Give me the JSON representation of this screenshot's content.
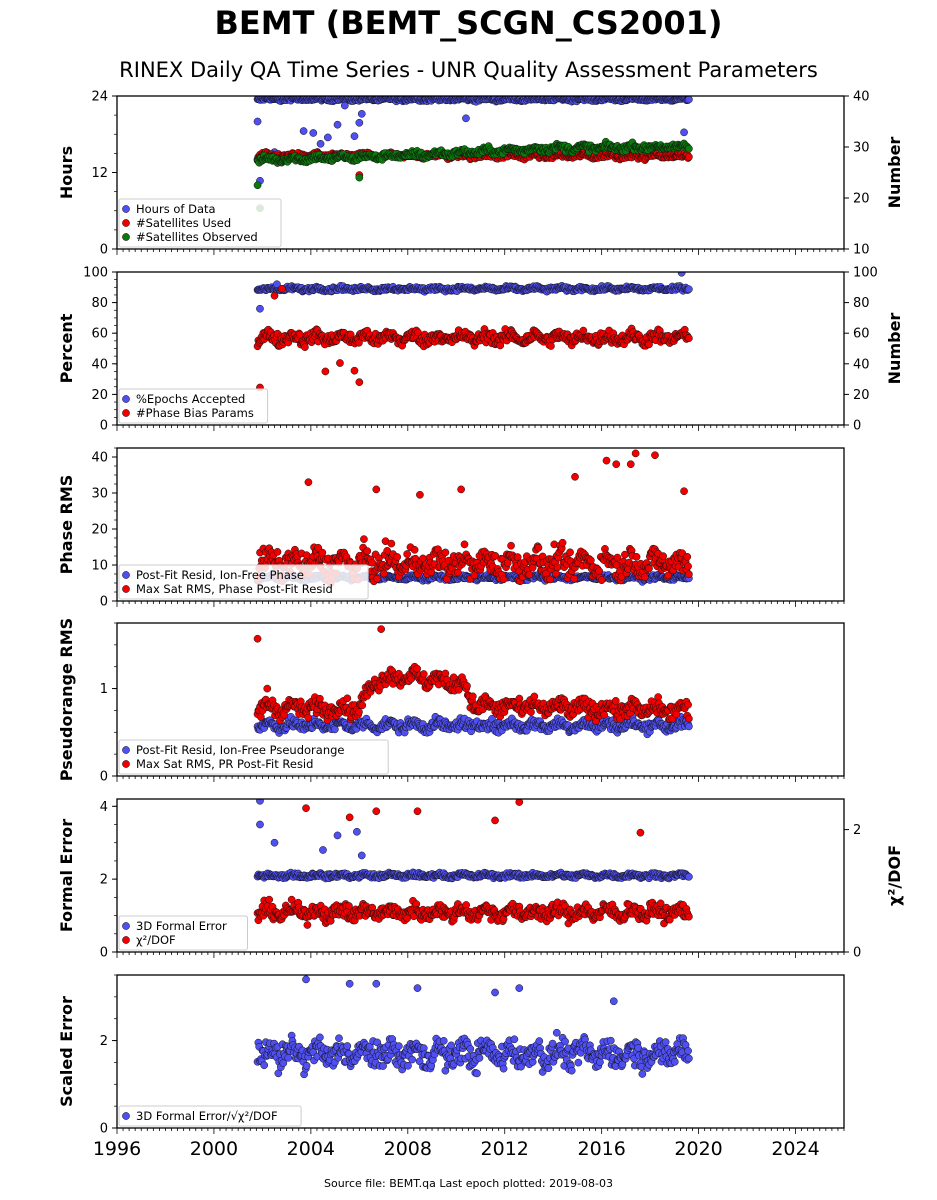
{
  "title": "BEMT (BEMT_SCGN_CS2001)",
  "subtitle": "RINEX Daily QA Time Series - UNR Quality Assessment Parameters",
  "source_note": "Source file: BEMT.qa Last epoch plotted: 2019-08-03",
  "colors": {
    "blue": "#4f4ff2",
    "red": "#f20000",
    "green": "#0a7a0a"
  },
  "chart_data": [
    {
      "type": "scatter",
      "ylabel": "Hours",
      "ylim": [
        0,
        24
      ],
      "yticks": [
        "0",
        "12",
        "24"
      ],
      "y2label": "Number",
      "y2lim": [
        10,
        40
      ],
      "y2ticks": [
        "10",
        "20",
        "30",
        "40"
      ],
      "xlim": [
        1996,
        2026
      ],
      "data_range": [
        2001.8,
        2019.6
      ],
      "series": [
        {
          "name": "Hours of Data",
          "color": "#4f4ff2",
          "axis": "left",
          "typical": 23.5,
          "spread": 0.25,
          "outliers": [
            [
              2001.8,
              20
            ],
            [
              2001.9,
              10.7
            ],
            [
              2002.5,
              15.2
            ],
            [
              2003.7,
              18.5
            ],
            [
              2004.1,
              18.2
            ],
            [
              2004.4,
              16.5
            ],
            [
              2004.7,
              17.5
            ],
            [
              2005.1,
              19.5
            ],
            [
              2005.4,
              22.5
            ],
            [
              2005.8,
              17.7
            ],
            [
              2006.0,
              19.8
            ],
            [
              2006.1,
              21.2
            ],
            [
              2010.4,
              20.5
            ],
            [
              2019.4,
              18.3
            ]
          ]
        },
        {
          "name": "#Satellites Used",
          "color": "#f20000",
          "axis": "right",
          "typical": 28.3,
          "spread": 0.5,
          "outliers": [
            [
              2006.0,
              24.5
            ]
          ]
        },
        {
          "name": "#Satellites Observed",
          "color": "#0a7a0a",
          "axis": "right",
          "typical": 28.2,
          "spread": 0.6,
          "trend": [
            [
              2001.8,
              27.5
            ],
            [
              2006.0,
              28.0
            ],
            [
              2010.0,
              28.8
            ],
            [
              2014.0,
              29.8
            ],
            [
              2019.6,
              30.0
            ]
          ],
          "outliers": [
            [
              2001.8,
              22.5
            ],
            [
              2001.9,
              18.0
            ],
            [
              2006.0,
              24.0
            ]
          ]
        }
      ]
    },
    {
      "type": "scatter",
      "ylabel": "Percent",
      "ylim": [
        0,
        100
      ],
      "yticks": [
        "0",
        "20",
        "40",
        "60",
        "80",
        "100"
      ],
      "y2label": "Number",
      "y2lim": [
        0,
        100
      ],
      "y2ticks": [
        "0",
        "20",
        "40",
        "60",
        "80",
        "100"
      ],
      "xlim": [
        1996,
        2026
      ],
      "data_range": [
        2001.8,
        2019.6
      ],
      "series": [
        {
          "name": "%Epochs Accepted",
          "color": "#4f4ff2",
          "axis": "left",
          "typical": 89,
          "spread": 1.3,
          "outliers": [
            [
              2001.9,
              76
            ],
            [
              2002.6,
              92
            ],
            [
              2019.3,
              99.5
            ]
          ]
        },
        {
          "name": "#Phase Bias Params",
          "color": "#f20000",
          "axis": "right",
          "typical": 57,
          "spread": 4,
          "outliers": [
            [
              2001.9,
              24.5
            ],
            [
              2002.5,
              84.5
            ],
            [
              2002.8,
              89
            ],
            [
              2004.6,
              35
            ],
            [
              2005.2,
              40.5
            ],
            [
              2005.8,
              35.5
            ],
            [
              2006.0,
              28
            ]
          ]
        }
      ]
    },
    {
      "type": "scatter",
      "ylabel": "Phase RMS",
      "ylim": [
        0,
        42.5
      ],
      "yticks": [
        "0",
        "10",
        "20",
        "30",
        "40"
      ],
      "xlim": [
        1996,
        2026
      ],
      "data_range": [
        2001.8,
        2019.6
      ],
      "series": [
        {
          "name": "Post-Fit Resid, Ion-Free Phase",
          "color": "#4f4ff2",
          "axis": "left",
          "typical": 6.5,
          "spread": 0.6
        },
        {
          "name": "Max Sat RMS, Phase Post-Fit Resid",
          "color": "#f20000",
          "axis": "left",
          "typical": 10.5,
          "spread": 3.5,
          "outliers": [
            [
              2003.9,
              33
            ],
            [
              2006.7,
              31
            ],
            [
              2008.5,
              29.5
            ],
            [
              2010.2,
              31
            ],
            [
              2014.9,
              34.5
            ],
            [
              2016.2,
              39
            ],
            [
              2016.6,
              38
            ],
            [
              2017.2,
              38
            ],
            [
              2017.4,
              41
            ],
            [
              2018.2,
              40.5
            ],
            [
              2019.4,
              30.5
            ]
          ]
        }
      ]
    },
    {
      "type": "scatter",
      "ylabel": "Pseudorange RMS",
      "ylim": [
        0,
        1.75
      ],
      "yticks": [
        "0",
        "1"
      ],
      "xlim": [
        1996,
        2026
      ],
      "data_range": [
        2001.8,
        2019.6
      ],
      "series": [
        {
          "name": "Post-Fit Resid, Ion-Free Pseudorange",
          "color": "#4f4ff2",
          "axis": "left",
          "typical": 0.58,
          "spread": 0.06
        },
        {
          "name": "Max Sat RMS, PR Post-Fit Resid",
          "color": "#f20000",
          "axis": "left",
          "typical": 0.78,
          "spread": 0.09,
          "trend": [
            [
              2001.8,
              0.78
            ],
            [
              2006.0,
              0.78
            ],
            [
              2006.7,
              1.1
            ],
            [
              2007.8,
              1.15
            ],
            [
              2009.0,
              1.1
            ],
            [
              2010.3,
              1.05
            ],
            [
              2010.8,
              0.8
            ],
            [
              2019.6,
              0.75
            ]
          ],
          "outliers": [
            [
              2001.8,
              1.57
            ],
            [
              2006.9,
              1.68
            ],
            [
              2002.2,
              1.0
            ]
          ]
        }
      ]
    },
    {
      "type": "scatter",
      "ylabel": "Formal Error",
      "ylim": [
        0,
        4.2
      ],
      "yticks": [
        "0",
        "2",
        "4"
      ],
      "y2label": "χ²/DOF",
      "y2lim": [
        0,
        2.5
      ],
      "y2ticks": [
        "0",
        "2"
      ],
      "xlim": [
        1996,
        2026
      ],
      "data_range": [
        2001.8,
        2019.6
      ],
      "series": [
        {
          "name": "3D Formal Error",
          "color": "#4f4ff2",
          "axis": "left",
          "typical": 2.1,
          "spread": 0.06,
          "outliers": [
            [
              2001.9,
              4.15
            ],
            [
              2001.9,
              3.5
            ],
            [
              2002.5,
              3.0
            ],
            [
              2004.5,
              2.8
            ],
            [
              2005.1,
              3.2
            ],
            [
              2005.9,
              3.3
            ],
            [
              2006.1,
              2.65
            ]
          ]
        },
        {
          "name": "χ²/DOF",
          "color": "#f20000",
          "axis": "right",
          "typical": 0.65,
          "spread": 0.12,
          "outliers": [
            [
              2003.8,
              2.35
            ],
            [
              2005.6,
              2.2
            ],
            [
              2006.7,
              2.3
            ],
            [
              2008.4,
              2.3
            ],
            [
              2011.6,
              2.15
            ],
            [
              2012.6,
              2.45
            ],
            [
              2017.6,
              1.95
            ]
          ]
        }
      ]
    },
    {
      "type": "scatter",
      "ylabel": "Scaled Error",
      "ylim": [
        0,
        3.5
      ],
      "yticks": [
        "0",
        "2"
      ],
      "xlim": [
        1996,
        2026
      ],
      "data_range": [
        2001.8,
        2019.6
      ],
      "series": [
        {
          "name": "3D Formal Error/√χ²/DOF",
          "color": "#4f4ff2",
          "axis": "left",
          "typical": 1.7,
          "spread": 0.3,
          "outliers": [
            [
              2003.8,
              3.4
            ],
            [
              2005.6,
              3.3
            ],
            [
              2006.7,
              3.3
            ],
            [
              2008.4,
              3.2
            ],
            [
              2011.6,
              3.1
            ],
            [
              2012.6,
              3.2
            ],
            [
              2016.5,
              2.9
            ]
          ]
        }
      ]
    }
  ],
  "x_tick_labels": [
    "1996",
    "2000",
    "2004",
    "2008",
    "2012",
    "2016",
    "2020",
    "2024"
  ]
}
